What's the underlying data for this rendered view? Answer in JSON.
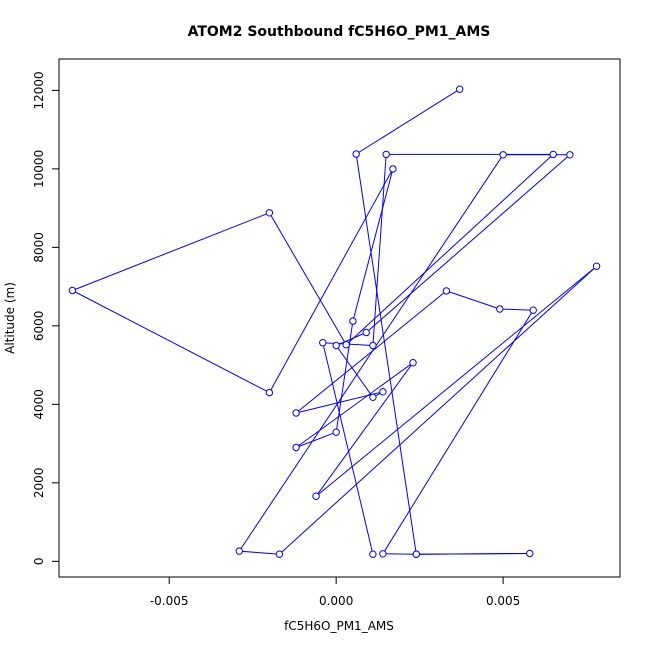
{
  "chart_data": {
    "type": "line",
    "title": "ATOM2 Southbound fC5H6O_PM1_AMS",
    "xlabel": "fC5H6O_PM1_AMS",
    "ylabel": "Altitude (m)",
    "xlim": [
      -0.0083,
      0.0085
    ],
    "ylim": [
      -400,
      12800
    ],
    "x_ticks": [
      -0.005,
      0.0,
      0.005
    ],
    "x_tick_labels": [
      "-0.005",
      "0.000",
      "0.005"
    ],
    "y_ticks": [
      0,
      2000,
      4000,
      6000,
      8000,
      10000,
      12000
    ],
    "y_tick_labels": [
      "0",
      "2000",
      "4000",
      "6000",
      "8000",
      "10000",
      "12000"
    ],
    "grid": false,
    "color": "#0000ff",
    "markers": "open-circle",
    "series": [
      {
        "x": [
          0.0037,
          0.0006,
          0.0024,
          0.0058,
          0.0024,
          0.0014,
          0.0059,
          0.0049,
          0.0033,
          -0.0012,
          0.0014,
          0.0011,
          0.0,
          0.0009,
          0.007,
          0.005,
          -0.0029,
          -0.0017,
          0.0078,
          -0.0006,
          0.0023,
          -0.0012,
          0.0,
          0.0005,
          0.0017,
          -0.002,
          -0.0079,
          -0.002,
          0.0003,
          0.0065,
          0.0015,
          0.0011,
          -0.0004,
          0.0011
        ],
        "y": [
          12030,
          10380,
          180,
          200,
          180,
          190,
          6400,
          6430,
          6890,
          3780,
          4320,
          4180,
          5500,
          5830,
          10360,
          10360,
          260,
          180,
          7520,
          1660,
          5060,
          2900,
          3290,
          6120,
          10000,
          4300,
          6900,
          8880,
          5520,
          10370,
          10370,
          5500,
          5570,
          180
        ]
      }
    ]
  }
}
